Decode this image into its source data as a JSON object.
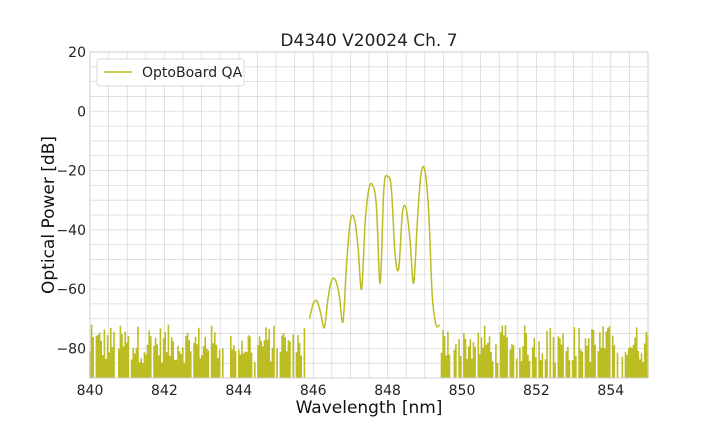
{
  "chart_data": {
    "type": "line",
    "title": "D4340 V20024 Ch. 7",
    "xlabel": "Wavelength [nm]",
    "ylabel": "Optical Power [dB]",
    "xlim": [
      840,
      855
    ],
    "ylim": [
      -90,
      20
    ],
    "xticks": [
      840,
      842,
      844,
      846,
      848,
      850,
      852,
      854
    ],
    "yticks": [
      20,
      0,
      -20,
      -40,
      -60,
      -80
    ],
    "grid": true,
    "legend_position": "top-left",
    "noise_floor_range": [
      -90,
      -72
    ],
    "series": [
      {
        "name": "OptoBoard QA",
        "color": "#bcbd22",
        "x": [
          845.9,
          846.0,
          846.1,
          846.2,
          846.3,
          846.4,
          846.5,
          846.6,
          846.7,
          846.8,
          846.9,
          847.0,
          847.1,
          847.2,
          847.3,
          847.4,
          847.5,
          847.6,
          847.7,
          847.8,
          847.9,
          848.0,
          848.1,
          848.2,
          848.3,
          848.4,
          848.5,
          848.6,
          848.7,
          848.8,
          848.9,
          849.0,
          849.1,
          849.2,
          849.3,
          849.4
        ],
        "y": [
          -70,
          -65,
          -64,
          -68,
          -73,
          -63,
          -57,
          -57,
          -62,
          -71,
          -51,
          -37,
          -36,
          -45,
          -60,
          -37,
          -26,
          -25,
          -32,
          -58,
          -26,
          -22,
          -26,
          -48,
          -53,
          -34,
          -33,
          -43,
          -58,
          -37,
          -21,
          -20,
          -33,
          -62,
          -72,
          -72
        ]
      }
    ]
  }
}
